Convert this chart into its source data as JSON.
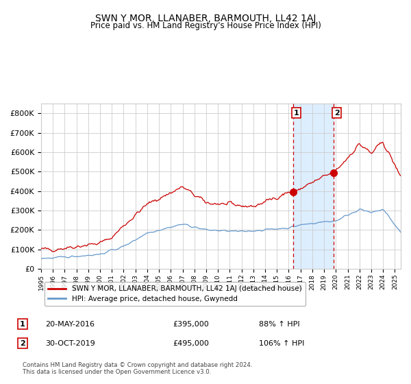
{
  "title": "SWN Y MOR, LLANABER, BARMOUTH, LL42 1AJ",
  "subtitle": "Price paid vs. HM Land Registry's House Price Index (HPI)",
  "legend_line1": "SWN Y MOR, LLANABER, BARMOUTH, LL42 1AJ (detached house)",
  "legend_line2": "HPI: Average price, detached house, Gwynedd",
  "annotation1_date": "20-MAY-2016",
  "annotation1_price": "£395,000",
  "annotation1_hpi": "88% ↑ HPI",
  "annotation2_date": "30-OCT-2019",
  "annotation2_price": "£495,000",
  "annotation2_hpi": "106% ↑ HPI",
  "footer": "Contains HM Land Registry data © Crown copyright and database right 2024.\nThis data is licensed under the Open Government Licence v3.0.",
  "red_color": "#cc0000",
  "blue_color": "#6699cc",
  "highlight_color": "#ddeeff",
  "grid_color": "#cccccc",
  "ylim": [
    0,
    850000
  ],
  "yticks": [
    0,
    100000,
    200000,
    300000,
    400000,
    500000,
    600000,
    700000,
    800000
  ],
  "ytick_labels": [
    "£0",
    "£100K",
    "£200K",
    "£300K",
    "£400K",
    "£500K",
    "£600K",
    "£700K",
    "£800K"
  ],
  "event1_x": 2016.38,
  "event1_y": 395000,
  "event2_x": 2019.83,
  "event2_y": 495000,
  "xmin": 1995.0,
  "xmax": 2025.5
}
